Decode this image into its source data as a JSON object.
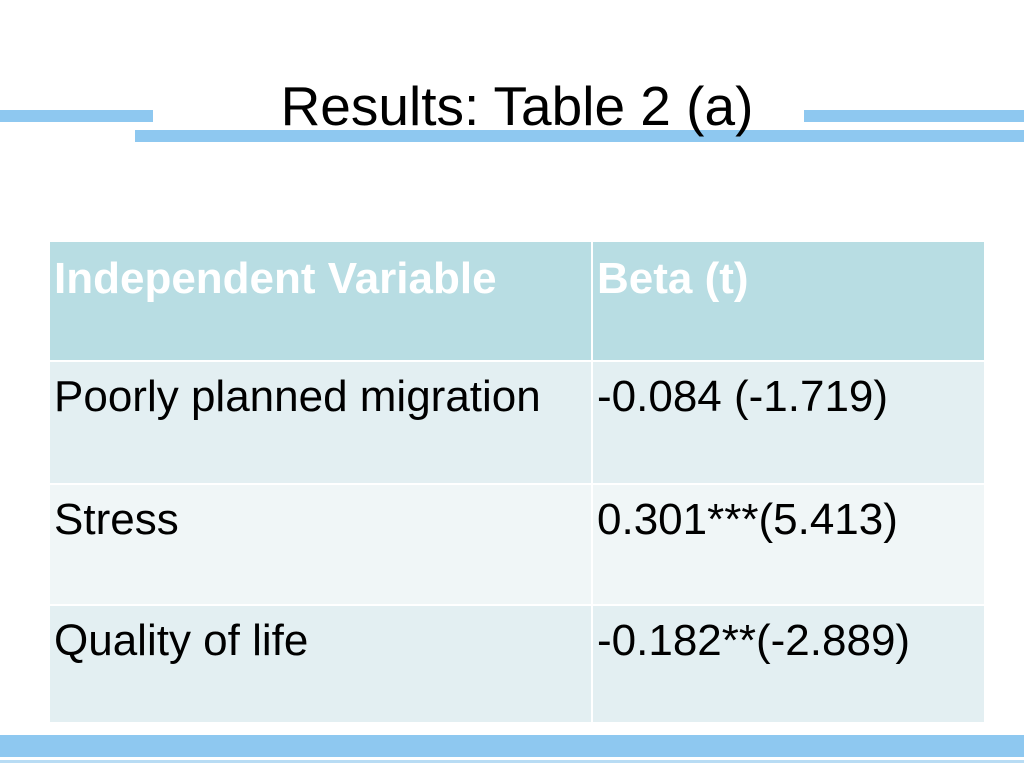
{
  "slide": {
    "title": "Results: Table 2 (a)"
  },
  "table": {
    "headers": [
      "Independent Variable",
      "Beta (t)"
    ],
    "rows": [
      [
        "Poorly planned migration",
        "-0.084 (-1.719)"
      ],
      [
        "Stress",
        "0.301***(5.413)"
      ],
      [
        "Quality of life",
        "-0.182**(-2.889)"
      ]
    ]
  },
  "colors": {
    "accent_bar": "#8ec8f0",
    "header_fill": "#b8dde3",
    "row_fill_dark": "#e3eff2",
    "row_fill_light": "#f0f6f7"
  }
}
